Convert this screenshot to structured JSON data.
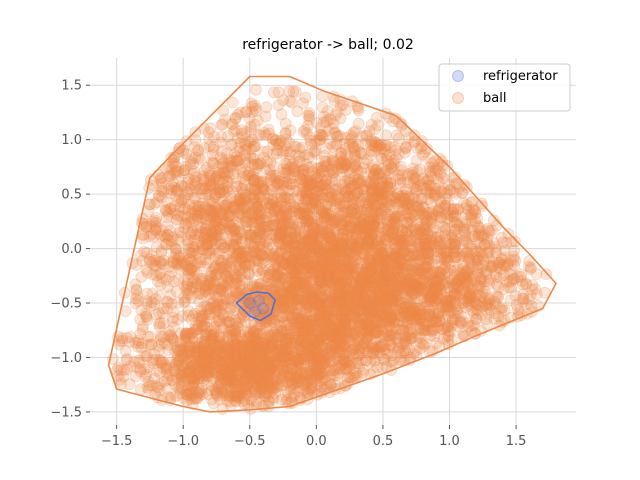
{
  "chart_data": {
    "type": "scatter",
    "title": "refrigerator -> ball; 0.02",
    "xlabel": "",
    "ylabel": "",
    "xlim": [
      -1.7,
      1.95
    ],
    "ylim": [
      -1.62,
      1.75
    ],
    "xticks": [
      -1.5,
      -1.0,
      -0.5,
      0.0,
      0.5,
      1.0,
      1.5
    ],
    "xtick_labels": [
      "−1.5",
      "−1.0",
      "−0.5",
      "0.0",
      "0.5",
      "1.0",
      "1.5"
    ],
    "yticks": [
      -1.5,
      -1.0,
      -0.5,
      0.0,
      0.5,
      1.0,
      1.5
    ],
    "ytick_labels": [
      "−1.5",
      "−1.0",
      "−0.5",
      "0.0",
      "0.5",
      "1.0",
      "1.5"
    ],
    "grid": true,
    "legend_position": "top-right",
    "series": [
      {
        "name": "refrigerator",
        "color": "#4c72d8",
        "point_alpha": 0.2,
        "hull": [
          [
            -0.6,
            -0.5
          ],
          [
            -0.52,
            -0.42
          ],
          [
            -0.45,
            -0.4
          ],
          [
            -0.36,
            -0.41
          ],
          [
            -0.31,
            -0.47
          ],
          [
            -0.34,
            -0.6
          ],
          [
            -0.42,
            -0.66
          ],
          [
            -0.5,
            -0.62
          ]
        ],
        "points": [
          [
            -0.5,
            -0.5
          ],
          [
            -0.43,
            -0.48
          ],
          [
            -0.4,
            -0.55
          ],
          [
            -0.46,
            -0.58
          ]
        ]
      },
      {
        "name": "ball",
        "color": "#ee8849",
        "point_alpha": 0.22,
        "hull": [
          [
            -1.56,
            -1.07
          ],
          [
            -1.5,
            -1.29
          ],
          [
            -1.0,
            -1.45
          ],
          [
            -0.8,
            -1.5
          ],
          [
            -0.5,
            -1.48
          ],
          [
            -0.2,
            -1.45
          ],
          [
            0.5,
            -1.15
          ],
          [
            0.9,
            -0.96
          ],
          [
            1.2,
            -0.8
          ],
          [
            1.7,
            -0.55
          ],
          [
            1.8,
            -0.32
          ],
          [
            1.6,
            -0.05
          ],
          [
            1.4,
            0.2
          ],
          [
            1.0,
            0.75
          ],
          [
            0.6,
            1.22
          ],
          [
            0.05,
            1.45
          ],
          [
            -0.2,
            1.58
          ],
          [
            -0.5,
            1.58
          ],
          [
            -1.15,
            0.78
          ],
          [
            -1.25,
            0.65
          ]
        ],
        "dense_regions": [
          {
            "cx": -0.55,
            "cy": -1.1,
            "sx": 0.45,
            "sy": 0.2,
            "n": 1200
          },
          {
            "cx": 0.15,
            "cy": -0.5,
            "sx": 0.4,
            "sy": 0.35,
            "n": 1400
          },
          {
            "cx": -0.2,
            "cy": 0.4,
            "sx": 0.55,
            "sy": 0.5,
            "n": 1100
          },
          {
            "cx": 0.6,
            "cy": 0.3,
            "sx": 0.5,
            "sy": 0.45,
            "n": 800
          },
          {
            "cx": 1.0,
            "cy": -0.35,
            "sx": 0.4,
            "sy": 0.3,
            "n": 600
          },
          {
            "cx": -0.9,
            "cy": 0.1,
            "sx": 0.3,
            "sy": 0.5,
            "n": 500
          },
          {
            "cx": 0.0,
            "cy": -0.1,
            "sx": 0.7,
            "sy": 0.6,
            "n": 900
          }
        ]
      }
    ]
  }
}
